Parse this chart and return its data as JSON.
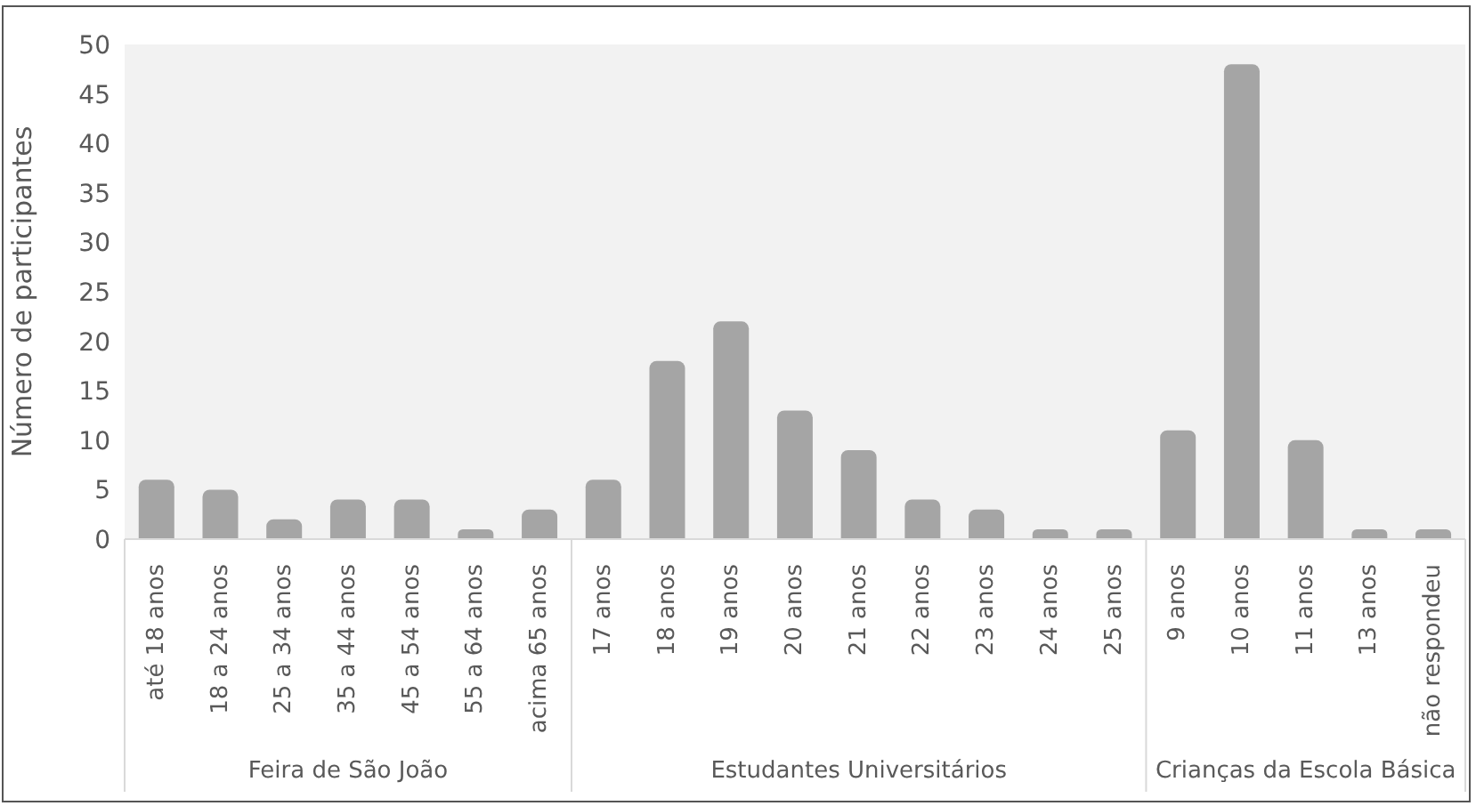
{
  "chart_data": {
    "type": "bar",
    "ylabel": "Número de participantes",
    "categories": [
      "até 18 anos",
      "18 a 24 anos",
      "25 a 34 anos",
      "35 a 44 anos",
      "45 a 54 anos",
      "55 a 64 anos",
      "acima 65 anos",
      "17 anos",
      "18 anos",
      "19 anos",
      "20 anos",
      "21 anos",
      "22 anos",
      "23 anos",
      "24 anos",
      "25 anos",
      "9 anos",
      "10 anos",
      "11 anos",
      "13 anos",
      "não respondeu"
    ],
    "values": [
      6,
      5,
      2,
      4,
      4,
      1,
      3,
      6,
      18,
      22,
      13,
      9,
      4,
      3,
      1,
      1,
      11,
      48,
      10,
      1,
      1
    ],
    "color": "#a5a5a5",
    "ylim": [
      0,
      50
    ],
    "yticks": [
      0,
      5,
      10,
      15,
      20,
      25,
      30,
      35,
      40,
      45,
      50
    ],
    "grid": false,
    "annotations": [
      "Feira de São João",
      "Estudantes Universitários",
      "Crianças da Escola Básica"
    ]
  }
}
